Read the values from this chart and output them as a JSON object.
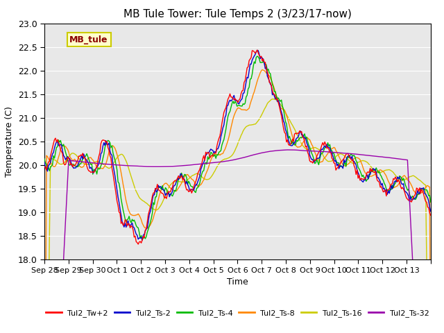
{
  "title": "MB Tule Tower: Tule Temps 2 (3/23/17-now)",
  "xlabel": "Time",
  "ylabel": "Temperature (C)",
  "ylim": [
    18.0,
    23.0
  ],
  "yticks": [
    18.0,
    18.5,
    19.0,
    19.5,
    20.0,
    20.5,
    21.0,
    21.5,
    22.0,
    22.5,
    23.0
  ],
  "background_color": "#e8e8e8",
  "series_colors": {
    "Tul2_Tw+2": "#ff0000",
    "Tul2_Ts-2": "#0000cc",
    "Tul2_Ts-4": "#00bb00",
    "Tul2_Ts-8": "#ff8800",
    "Tul2_Ts-16": "#cccc00",
    "Tul2_Ts-32": "#9900aa"
  },
  "legend_labels": [
    "Tul2_Tw+2",
    "Tul2_Ts-2",
    "Tul2_Ts-4",
    "Tul2_Ts-8",
    "Tul2_Ts-16",
    "Tul2_Ts-32"
  ],
  "xtick_positions": [
    0,
    1,
    2,
    3,
    4,
    5,
    6,
    7,
    8,
    9,
    10,
    11,
    12,
    13,
    14,
    15,
    16
  ],
  "xtick_labels": [
    "Sep 28",
    "Sep 29",
    "Sep 30",
    "Oct 1",
    "Oct 2",
    "Oct 3",
    "Oct 4",
    "Oct 5",
    "Oct 6",
    "Oct 7",
    "Oct 8",
    "Oct 9",
    "Oct 10",
    "Oct 11",
    "Oct 12",
    "Oct 13",
    ""
  ],
  "watermark_text": "MB_tule",
  "watermark_color": "#8b0000",
  "watermark_bg": "#ffffcc",
  "watermark_border": "#cccc00"
}
